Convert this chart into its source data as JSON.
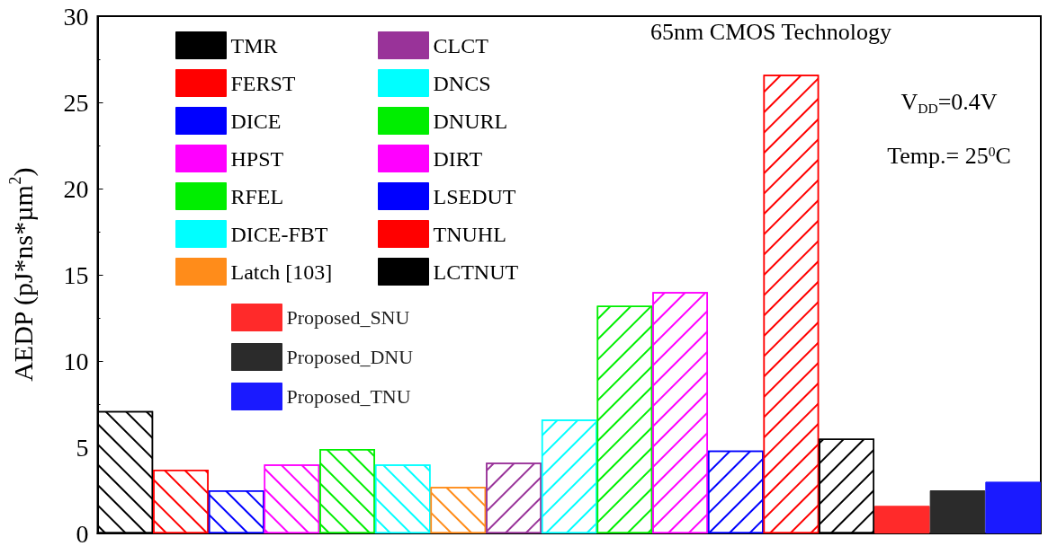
{
  "chart_data": {
    "type": "bar",
    "ylabel": "AEDP (pJ*ns*µm$^{2}$)",
    "categories": [
      null,
      null,
      null,
      null,
      null,
      null,
      null,
      null,
      null,
      null,
      null,
      null,
      null,
      null,
      null,
      null,
      null
    ],
    "ylim": [
      0,
      30
    ],
    "yticks": [
      0,
      5,
      10,
      15,
      20,
      25,
      30
    ],
    "grid": false,
    "legend": "top left",
    "annotations": [
      "65nm CMOS Technology",
      "V$_{DD}$=0.4V",
      "Temp.= 25$^{0}$C"
    ],
    "series": [
      {
        "name": "TMR",
        "color": "#000000",
        "values": [
          7.1,
          null,
          null,
          null,
          null,
          null,
          null,
          null,
          null,
          null,
          null,
          null,
          null,
          null,
          null,
          null,
          null
        ]
      },
      {
        "name": "FERST",
        "color": "#ff0000",
        "values": [
          null,
          3.7,
          null,
          null,
          null,
          null,
          null,
          null,
          null,
          null,
          null,
          null,
          null,
          null,
          null,
          null,
          null
        ]
      },
      {
        "name": "DICE",
        "color": "#0000ff",
        "values": [
          null,
          null,
          2.5,
          null,
          null,
          null,
          null,
          null,
          null,
          null,
          null,
          null,
          null,
          null,
          null,
          null,
          null
        ]
      },
      {
        "name": "HPST",
        "color": "#ff00ff",
        "values": [
          null,
          null,
          null,
          4.0,
          null,
          null,
          null,
          null,
          null,
          null,
          null,
          null,
          null,
          null,
          null,
          null,
          null
        ]
      },
      {
        "name": "RFEL",
        "color": "#00ee00",
        "values": [
          null,
          null,
          null,
          null,
          4.9,
          null,
          null,
          null,
          null,
          null,
          null,
          null,
          null,
          null,
          null,
          null,
          null
        ]
      },
      {
        "name": "DICE-FBT",
        "color": "#00ffff",
        "values": [
          null,
          null,
          null,
          null,
          null,
          4.0,
          null,
          null,
          null,
          null,
          null,
          null,
          null,
          null,
          null,
          null,
          null
        ]
      },
      {
        "name": "Latch [103]",
        "color": "#ff8c1a",
        "values": [
          null,
          null,
          null,
          null,
          null,
          null,
          2.7,
          null,
          null,
          null,
          null,
          null,
          null,
          null,
          null,
          null,
          null
        ]
      },
      {
        "name": "CLCT",
        "color": "#993399",
        "values": [
          null,
          null,
          null,
          null,
          null,
          null,
          null,
          4.1,
          null,
          null,
          null,
          null,
          null,
          null,
          null,
          null,
          null
        ]
      },
      {
        "name": "DNCS",
        "color": "#00ffff",
        "values": [
          null,
          null,
          null,
          null,
          null,
          null,
          null,
          null,
          6.6,
          null,
          null,
          null,
          null,
          null,
          null,
          null,
          null
        ]
      },
      {
        "name": "DNURL",
        "color": "#00ee00",
        "values": [
          null,
          null,
          null,
          null,
          null,
          null,
          null,
          null,
          null,
          13.2,
          null,
          null,
          null,
          null,
          null,
          null,
          null
        ]
      },
      {
        "name": "DIRT",
        "color": "#ff00ff",
        "values": [
          null,
          null,
          null,
          null,
          null,
          null,
          null,
          null,
          null,
          null,
          14.0,
          null,
          null,
          null,
          null,
          null,
          null
        ]
      },
      {
        "name": "LSEDUT",
        "color": "#0000ff",
        "values": [
          null,
          null,
          null,
          null,
          null,
          null,
          null,
          null,
          null,
          null,
          null,
          4.8,
          null,
          null,
          null,
          null,
          null
        ]
      },
      {
        "name": "TNUHL",
        "color": "#ff0000",
        "values": [
          null,
          null,
          null,
          null,
          null,
          null,
          null,
          null,
          null,
          null,
          null,
          null,
          26.6,
          null,
          null,
          null,
          null
        ]
      },
      {
        "name": "LCTNUT",
        "color": "#000000",
        "values": [
          null,
          null,
          null,
          null,
          null,
          null,
          null,
          null,
          null,
          null,
          null,
          null,
          null,
          5.5,
          null,
          null,
          null
        ]
      },
      {
        "name": "Proposed_SNU",
        "color": "#ff2a2a",
        "values": [
          null,
          null,
          null,
          null,
          null,
          null,
          null,
          null,
          null,
          null,
          null,
          null,
          null,
          null,
          1.6,
          null,
          null
        ]
      },
      {
        "name": "Proposed_DNU",
        "color": "#2b2b2b",
        "values": [
          null,
          null,
          null,
          null,
          null,
          null,
          null,
          null,
          null,
          null,
          null,
          null,
          null,
          null,
          null,
          2.5,
          null
        ]
      },
      {
        "name": "Proposed_TNU",
        "color": "#1a1aff",
        "values": [
          null,
          null,
          null,
          null,
          null,
          null,
          null,
          null,
          null,
          null,
          null,
          null,
          null,
          null,
          null,
          null,
          3.0
        ]
      }
    ]
  }
}
